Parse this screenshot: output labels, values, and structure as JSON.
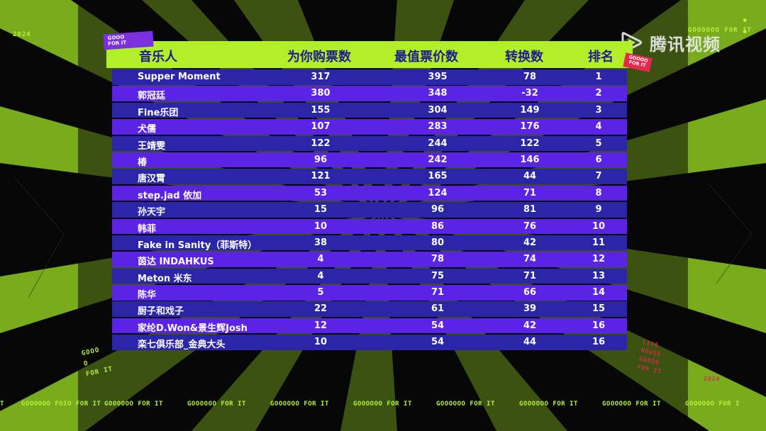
{
  "decor": {
    "year_top_left": "2024",
    "tag_top_right": "GOOOOOO FOR IT",
    "dots_top_right": "• •",
    "side_left": "GOOO\nO\nFOR IT",
    "side_right": "LIVE\nHOUSE\nGOOOO\nFOR IT",
    "year_right": "2024",
    "sticker_left": "GOOO\nFOR IT",
    "sticker_right": "GOOOO\nFOR IT",
    "ticker": [
      "T",
      "GOOOOOO FOIO FOR IT",
      "GOOOOOO FOR IT",
      "GOOOOOO FOR IT",
      "GOOOOOO FOR IT",
      "GOOOOOO FOR IT",
      "GOOOOOO FOR IT",
      "GOOOOOO FOR IT",
      "GOOOOOO FOR IT",
      "GOOOOOO FOR I"
    ],
    "accent_green": "#b3ef28",
    "row_dark": "#2b26a8",
    "row_light": "#5a23e6",
    "header_text": "#1f1c8c"
  },
  "watermark": {
    "text": "腾讯视频",
    "icon": "tencent-video-logo-icon"
  },
  "table": {
    "headers": {
      "name": "音乐人",
      "buy": "为你购票数",
      "value": "最值票价数",
      "conv": "转换数",
      "rank": "排名"
    },
    "rows": [
      {
        "name": "Supper Moment",
        "buy": "317",
        "value": "395",
        "conv": "78",
        "rank": "1"
      },
      {
        "name": "郭冠廷",
        "buy": "380",
        "value": "348",
        "conv": "-32",
        "rank": "2"
      },
      {
        "name": "Fine乐团",
        "buy": "155",
        "value": "304",
        "conv": "149",
        "rank": "3"
      },
      {
        "name": "犬儒",
        "buy": "107",
        "value": "283",
        "conv": "176",
        "rank": "4"
      },
      {
        "name": "王靖雯",
        "buy": "122",
        "value": "244",
        "conv": "122",
        "rank": "5"
      },
      {
        "name": "椿",
        "buy": "96",
        "value": "242",
        "conv": "146",
        "rank": "6"
      },
      {
        "name": "唐汉霄",
        "buy": "121",
        "value": "165",
        "conv": "44",
        "rank": "7"
      },
      {
        "name": "step.jad 依加",
        "buy": "53",
        "value": "124",
        "conv": "71",
        "rank": "8"
      },
      {
        "name": "孙天宇",
        "buy": "15",
        "value": "96",
        "conv": "81",
        "rank": "9"
      },
      {
        "name": "韩菲",
        "buy": "10",
        "value": "86",
        "conv": "76",
        "rank": "10"
      },
      {
        "name": "Fake in Sanity（菲斯特）",
        "buy": "38",
        "value": "80",
        "conv": "42",
        "rank": "11"
      },
      {
        "name": "茵达 INDAHKUS",
        "buy": "4",
        "value": "78",
        "conv": "74",
        "rank": "12"
      },
      {
        "name": "Meton 米东",
        "buy": "4",
        "value": "75",
        "conv": "71",
        "rank": "13"
      },
      {
        "name": "陈华",
        "buy": "5",
        "value": "71",
        "conv": "66",
        "rank": "14"
      },
      {
        "name": "厨子和戏子",
        "buy": "22",
        "value": "61",
        "conv": "39",
        "rank": "15"
      },
      {
        "name": "家纶D.Won&景生辉Josh",
        "buy": "12",
        "value": "54",
        "conv": "42",
        "rank": "16"
      },
      {
        "name": "栾七俱乐部_金典大头",
        "buy": "10",
        "value": "54",
        "conv": "44",
        "rank": "16"
      }
    ]
  }
}
